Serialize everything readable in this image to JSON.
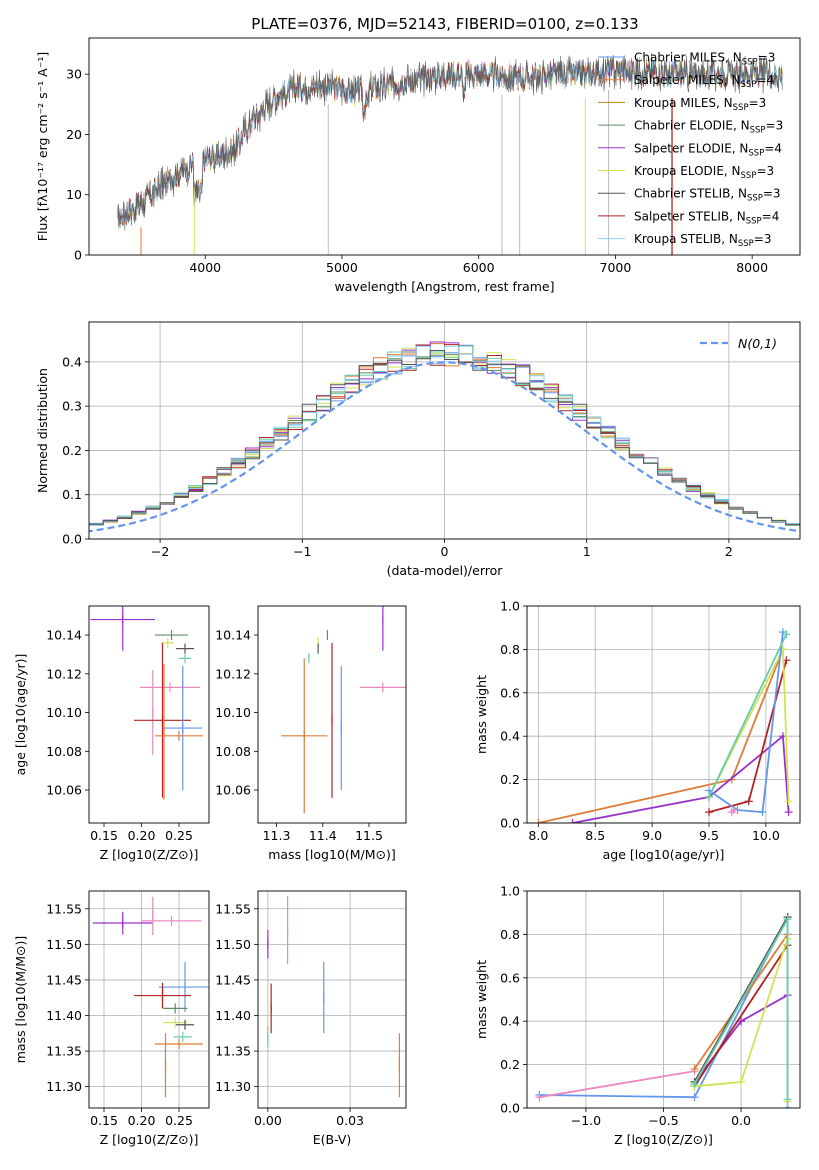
{
  "figure": {
    "title": "PLATE=0376, MJD=52143, FIBERID=0100, z=0.133"
  },
  "colors": {
    "c1": "#6495ed",
    "c2": "#e07b39",
    "c3": "#b8860b",
    "c4": "#5f8f5f",
    "c5": "#9932cc",
    "c6": "#d4e157",
    "c7": "#555555",
    "c8": "#b22222",
    "c9": "#66cdaa",
    "c10": "#87cefa",
    "pink": "#e88ac0",
    "grid": "#b0b0b0",
    "normal": "#6495ed"
  },
  "chart_data": [
    {
      "id": "spectrum",
      "type": "line",
      "xlabel": "wavelength [Angstrom, rest frame]",
      "ylabel": "Flux [fλ10⁻¹⁷ erg cm⁻² s⁻¹ A⁻¹]",
      "xlim": [
        3150,
        8350
      ],
      "ylim": [
        0,
        36
      ],
      "xticks": [
        4000,
        5000,
        6000,
        7000,
        8000
      ],
      "yticks": [
        0,
        10,
        20,
        30
      ],
      "grid": false,
      "legend": "top-right",
      "continuum_x": [
        3350,
        3500,
        3700,
        3900,
        4000,
        4100,
        4200,
        4300,
        4500,
        4700,
        4900,
        5100,
        5300,
        5500,
        5800,
        6000,
        6200,
        6400,
        6600,
        6800,
        7000,
        7200,
        7400,
        7600,
        7800,
        8000,
        8200
      ],
      "continuum_y": [
        6,
        8,
        12,
        15,
        16,
        16.5,
        17,
        21,
        26,
        28,
        28,
        27,
        28,
        29,
        30,
        30,
        29.5,
        29.5,
        30,
        30,
        30.5,
        30.5,
        30,
        30,
        30,
        30,
        30
      ],
      "series": [
        {
          "name": "Chabrier MILES, N_SSP=3",
          "color": "c1"
        },
        {
          "name": "Salpeter MILES, N_SSP=4",
          "color": "c2"
        },
        {
          "name": "Kroupa MILES, N_SSP=3",
          "color": "c3"
        },
        {
          "name": "Chabrier ELODIE, N_SSP=3",
          "color": "c4"
        },
        {
          "name": "Salpeter ELODIE, N_SSP=4",
          "color": "c5"
        },
        {
          "name": "Kroupa ELODIE, N_SSP=3",
          "color": "c6"
        },
        {
          "name": "Chabrier STELIB, N_SSP=3",
          "color": "c7"
        },
        {
          "name": "Salpeter STELIB, N_SSP=4",
          "color": "c8"
        },
        {
          "name": "Kroupa STELIB, N_SSP=3",
          "color": "c10"
        }
      ],
      "legend_entries": [
        {
          "pre": "Chabrier MILES, N",
          "sub": "SSP",
          "post": "=3",
          "color": "c1"
        },
        {
          "pre": "Salpeter MILES, N",
          "sub": "SSP",
          "post": "=4",
          "color": "c2"
        },
        {
          "pre": "Kroupa MILES, N",
          "sub": "SSP",
          "post": "=3",
          "color": "c3"
        },
        {
          "pre": "Chabrier ELODIE, N",
          "sub": "SSP",
          "post": "=3",
          "color": "c4"
        },
        {
          "pre": "Salpeter ELODIE, N",
          "sub": "SSP",
          "post": "=4",
          "color": "c5"
        },
        {
          "pre": "Kroupa ELODIE, N",
          "sub": "SSP",
          "post": "=3",
          "color": "c6"
        },
        {
          "pre": "Chabrier STELIB, N",
          "sub": "SSP",
          "post": "=3",
          "color": "c7"
        },
        {
          "pre": "Salpeter STELIB, N",
          "sub": "SSP",
          "post": "=4",
          "color": "c8"
        },
        {
          "pre": "Kroupa STELIB, N",
          "sub": "SSP",
          "post": "=3",
          "color": "c10"
        }
      ]
    },
    {
      "id": "residuals",
      "type": "line",
      "xlabel": "(data-model)/error",
      "ylabel": "Normed distribution",
      "xlim": [
        -2.5,
        2.5
      ],
      "ylim": [
        0,
        0.49
      ],
      "xticks": [
        -2,
        -1,
        0,
        1,
        2
      ],
      "yticks": [
        0.0,
        0.1,
        0.2,
        0.3,
        0.4
      ],
      "grid": true,
      "legend": "top-right",
      "normal_label": "N(0,1)",
      "hist_colors": [
        "c1",
        "c2",
        "c4",
        "c5",
        "c6",
        "c8",
        "c9",
        "c10",
        "c7"
      ]
    },
    {
      "id": "age_vs_Z",
      "type": "scatter",
      "xlabel": "Z [log10(Z/Z⊙)]",
      "ylabel": "age [log10(age/yr)]",
      "xlim": [
        0.13,
        0.29
      ],
      "ylim": [
        10.043,
        10.155
      ],
      "xticks": [
        0.15,
        0.2,
        0.25
      ],
      "yticks": [
        10.06,
        10.08,
        10.1,
        10.12,
        10.14
      ],
      "grid": false,
      "points": [
        {
          "x": 0.175,
          "y": 10.148,
          "ex": 0.043,
          "ey": 0.016,
          "color": "c5"
        },
        {
          "x": 0.24,
          "y": 10.14,
          "ex": 0.022,
          "ey": 0.0,
          "color": "c4"
        },
        {
          "x": 0.235,
          "y": 10.136,
          "ex": 0.008,
          "ey": 0.0,
          "color": "c6"
        },
        {
          "x": 0.258,
          "y": 10.133,
          "ex": 0.012,
          "ey": 0.0,
          "color": "c7"
        },
        {
          "x": 0.258,
          "y": 10.128,
          "ex": 0.008,
          "ey": 0.0,
          "color": "c9"
        },
        {
          "x": 0.255,
          "y": 10.113,
          "ex": 0.0,
          "ey": 0.0,
          "color": "c10"
        },
        {
          "x": 0.238,
          "y": 10.113,
          "ex": 0.04,
          "ey": 0.0,
          "color": "pink"
        },
        {
          "x": 0.215,
          "y": 10.1,
          "ex": 0.0,
          "ey": 0.022,
          "color": "pink"
        },
        {
          "x": 0.228,
          "y": 10.096,
          "ex": 0.038,
          "ey": 0.04,
          "color": "c8"
        },
        {
          "x": 0.255,
          "y": 10.092,
          "ex": 0.026,
          "ey": 0.032,
          "color": "c1"
        },
        {
          "x": 0.25,
          "y": 10.088,
          "ex": 0.032,
          "ey": 0.0,
          "color": "c2"
        },
        {
          "x": 0.23,
          "y": 10.09,
          "ex": 0.0,
          "ey": 0.035,
          "color": "c2"
        }
      ]
    },
    {
      "id": "age_vs_mass",
      "type": "scatter",
      "xlabel": "mass [log10(M/M⊙)]",
      "xlim": [
        11.26,
        11.58
      ],
      "ylim": [
        10.043,
        10.155
      ],
      "xticks": [
        11.3,
        11.4,
        11.5
      ],
      "yticks": [
        10.06,
        10.08,
        10.1,
        10.12,
        10.14
      ],
      "grid": false,
      "points": [
        {
          "x": 11.53,
          "y": 10.148,
          "ex": 0.0,
          "ey": 0.016,
          "color": "c5"
        },
        {
          "x": 11.41,
          "y": 10.14,
          "ex": 0.0,
          "ey": 0.0,
          "color": "c4"
        },
        {
          "x": 11.39,
          "y": 10.136,
          "ex": 0.0,
          "ey": 0.0,
          "color": "c6"
        },
        {
          "x": 11.39,
          "y": 10.133,
          "ex": 0.0,
          "ey": 0.0,
          "color": "c7"
        },
        {
          "x": 11.37,
          "y": 10.128,
          "ex": 0.0,
          "ey": 0.0,
          "color": "c9"
        },
        {
          "x": 11.53,
          "y": 10.113,
          "ex": 0.05,
          "ey": 0.0,
          "color": "pink"
        },
        {
          "x": 11.42,
          "y": 10.096,
          "ex": 0.0,
          "ey": 0.04,
          "color": "c8"
        },
        {
          "x": 11.44,
          "y": 10.092,
          "ex": 0.0,
          "ey": 0.032,
          "color": "c1"
        },
        {
          "x": 11.36,
          "y": 10.088,
          "ex": 0.05,
          "ey": 0.04,
          "color": "c2"
        }
      ]
    },
    {
      "id": "mass_weight_vs_age",
      "type": "line",
      "xlabel": "age [log10(age/yr)]",
      "ylabel": "mass weight",
      "xlim": [
        7.9,
        10.3
      ],
      "ylim": [
        0,
        1
      ],
      "xticks": [
        8.0,
        8.5,
        9.0,
        9.5,
        10.0
      ],
      "yticks": [
        0.0,
        0.2,
        0.4,
        0.6,
        0.8,
        1.0
      ],
      "grid": true,
      "series": [
        {
          "color": "c2",
          "x": [
            8.0,
            9.7,
            10.15
          ],
          "y": [
            0.0,
            0.2,
            0.8
          ]
        },
        {
          "color": "c5",
          "x": [
            8.3,
            9.5,
            10.15,
            10.2
          ],
          "y": [
            0.0,
            0.12,
            0.4,
            0.05
          ]
        },
        {
          "color": "c8",
          "x": [
            9.5,
            9.85,
            10.18
          ],
          "y": [
            0.05,
            0.1,
            0.75
          ]
        },
        {
          "color": "c6",
          "x": [
            9.5,
            10.15,
            10.2
          ],
          "y": [
            0.12,
            0.8,
            0.1
          ]
        },
        {
          "color": "c1",
          "x": [
            9.5,
            9.75,
            9.97,
            10.15
          ],
          "y": [
            0.15,
            0.06,
            0.05,
            0.88
          ]
        },
        {
          "color": "c9",
          "x": [
            9.5,
            10.18
          ],
          "y": [
            0.12,
            0.87
          ]
        },
        {
          "color": "pink",
          "x": [
            9.7,
            9.72
          ],
          "y": [
            0.05,
            0.06
          ]
        }
      ]
    },
    {
      "id": "mass_vs_Z",
      "type": "scatter",
      "xlabel": "Z [log10(Z/Z⊙)]",
      "ylabel": "mass [log10(M/M⊙)]",
      "xlim": [
        0.13,
        0.29
      ],
      "ylim": [
        11.27,
        11.575
      ],
      "xticks": [
        0.15,
        0.2,
        0.25
      ],
      "yticks": [
        11.3,
        11.35,
        11.4,
        11.45,
        11.5,
        11.55
      ],
      "grid": true,
      "points": [
        {
          "x": 0.175,
          "y": 11.53,
          "ex": 0.04,
          "ey": 0.016,
          "color": "c5"
        },
        {
          "x": 0.24,
          "y": 11.533,
          "ex": 0.04,
          "ey": 0.0,
          "color": "pink"
        },
        {
          "x": 0.215,
          "y": 11.54,
          "ex": 0.0,
          "ey": 0.027,
          "color": "pink"
        },
        {
          "x": 0.258,
          "y": 11.44,
          "ex": 0.035,
          "ey": 0.035,
          "color": "c1"
        },
        {
          "x": 0.228,
          "y": 11.428,
          "ex": 0.038,
          "ey": 0.018,
          "color": "c8"
        },
        {
          "x": 0.245,
          "y": 11.41,
          "ex": 0.016,
          "ey": 0.0,
          "color": "c4"
        },
        {
          "x": 0.245,
          "y": 11.39,
          "ex": 0.016,
          "ey": 0.0,
          "color": "c6"
        },
        {
          "x": 0.258,
          "y": 11.387,
          "ex": 0.012,
          "ey": 0.0,
          "color": "c7"
        },
        {
          "x": 0.255,
          "y": 11.37,
          "ex": 0.012,
          "ey": 0.0,
          "color": "c9"
        },
        {
          "x": 0.25,
          "y": 11.36,
          "ex": 0.032,
          "ey": 0.0,
          "color": "c2"
        },
        {
          "x": 0.232,
          "y": 11.33,
          "ex": 0.0,
          "ey": 0.045,
          "color": "c2"
        }
      ]
    },
    {
      "id": "mass_vs_ebv",
      "type": "scatter",
      "xlabel": "E(B-V)",
      "xlim": [
        -0.003,
        0.042
      ],
      "ylim": [
        11.27,
        11.575
      ],
      "xticks": [
        0.0,
        0.025
      ],
      "yticks": [
        11.3,
        11.35,
        11.4,
        11.45,
        11.5,
        11.55
      ],
      "grid": true,
      "points": [
        {
          "x": 0.006,
          "y": 11.52,
          "ex": 0.0,
          "ey": 0.048,
          "color": "pink"
        },
        {
          "x": 0.0,
          "y": 11.5,
          "ex": 0.0,
          "ey": 0.02,
          "color": "c5"
        },
        {
          "x": 0.001,
          "y": 11.41,
          "ex": 0.0,
          "ey": 0.035,
          "color": "c8"
        },
        {
          "x": 0.0,
          "y": 11.37,
          "ex": 0.0,
          "ey": 0.015,
          "color": "c9"
        },
        {
          "x": 0.017,
          "y": 11.425,
          "ex": 0.0,
          "ey": 0.05,
          "color": "c1"
        },
        {
          "x": 0.04,
          "y": 11.33,
          "ex": 0.0,
          "ey": 0.045,
          "color": "c2"
        }
      ]
    },
    {
      "id": "mass_weight_vs_Z",
      "type": "line",
      "xlabel": "Z [log10(Z/Z⊙)]",
      "ylabel": "mass weight",
      "xlim": [
        -1.38,
        0.38
      ],
      "ylim": [
        0,
        1
      ],
      "xticks": [
        -1.0,
        -0.5,
        0.0
      ],
      "yticks": [
        0.0,
        0.2,
        0.4,
        0.6,
        0.8,
        1.0
      ],
      "grid": true,
      "series": [
        {
          "color": "c1",
          "x": [
            -1.3,
            -0.3,
            0.3,
            0.3
          ],
          "y": [
            0.06,
            0.05,
            0.88,
            0.0
          ]
        },
        {
          "color": "pink",
          "x": [
            -1.3,
            -0.3
          ],
          "y": [
            0.05,
            0.17
          ]
        },
        {
          "color": "c2",
          "x": [
            -0.3,
            0.3
          ],
          "y": [
            0.18,
            0.8
          ]
        },
        {
          "color": "c5",
          "x": [
            0.0,
            0.3
          ],
          "y": [
            0.4,
            0.52
          ]
        },
        {
          "color": "c5",
          "x": [
            -0.3,
            0.0
          ],
          "y": [
            0.12,
            0.4
          ]
        },
        {
          "color": "c8",
          "x": [
            -0.3,
            0.3
          ],
          "y": [
            0.1,
            0.75
          ]
        },
        {
          "color": "c6",
          "x": [
            -0.3,
            0.0,
            0.3,
            0.3
          ],
          "y": [
            0.1,
            0.12,
            0.78,
            0.03
          ]
        },
        {
          "color": "c7",
          "x": [
            -0.3,
            0.3
          ],
          "y": [
            0.12,
            0.88
          ]
        },
        {
          "color": "c9",
          "x": [
            -0.3,
            0.3,
            0.3
          ],
          "y": [
            0.11,
            0.87,
            0.04
          ]
        }
      ]
    }
  ]
}
